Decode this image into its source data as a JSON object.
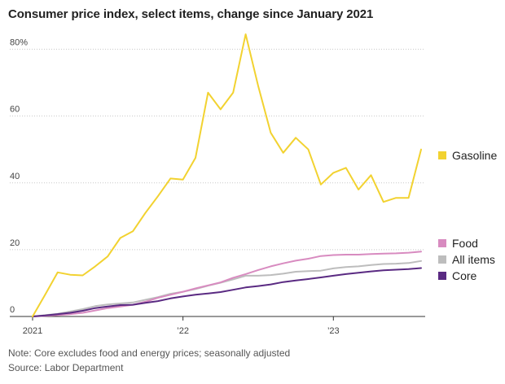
{
  "chart_data": {
    "type": "line",
    "title": "Consumer price index, select items, change since January 2021",
    "y_ticks": [
      "80%",
      "60",
      "40",
      "20",
      "0"
    ],
    "y_tick_values": [
      80,
      60,
      40,
      20,
      0
    ],
    "x_ticks": [
      "2021",
      "’22",
      "’23"
    ],
    "x_tick_values": [
      0,
      12,
      24
    ],
    "ylim": [
      0,
      85
    ],
    "xlim": [
      0,
      31
    ],
    "grid": true,
    "legend_placement": "right",
    "x": [
      0,
      1,
      2,
      3,
      4,
      5,
      6,
      7,
      8,
      9,
      10,
      11,
      12,
      13,
      14,
      15,
      16,
      17,
      18,
      19,
      20,
      21,
      22,
      23,
      24,
      25,
      26,
      27,
      28,
      29,
      30,
      31
    ],
    "series": [
      {
        "name": "Gasoline",
        "color": "#f2d230",
        "values": [
          0,
          6.5,
          13.2,
          12.5,
          12.3,
          15,
          18,
          23.5,
          25.5,
          31,
          36,
          41.3,
          41,
          47.5,
          67,
          62,
          67,
          84.5,
          69,
          55,
          49,
          53.5,
          50,
          39.5,
          43,
          44.5,
          38,
          42.3,
          34.3,
          35.5,
          35.5,
          50
        ]
      },
      {
        "name": "Food",
        "color": "#d88bc0",
        "values": [
          0,
          0.2,
          0.4,
          0.7,
          1.1,
          1.8,
          2.5,
          3,
          3.5,
          4.4,
          5.6,
          6.5,
          7.4,
          8.4,
          9.3,
          10.2,
          11.6,
          12.7,
          13.9,
          15,
          15.9,
          16.7,
          17.3,
          18.1,
          18.4,
          18.5,
          18.5,
          18.7,
          18.8,
          18.9,
          19.1,
          19.4
        ]
      },
      {
        "name": "All items",
        "color": "#bdbdbd",
        "values": [
          0,
          0.4,
          0.8,
          1.5,
          2.2,
          3.1,
          3.6,
          3.9,
          4.2,
          5,
          5.8,
          6.8,
          7.4,
          8.2,
          9.2,
          10.1,
          11.1,
          12.2,
          12.2,
          12.4,
          12.8,
          13.4,
          13.6,
          13.7,
          14.4,
          14.8,
          15,
          15.4,
          15.7,
          15.8,
          16,
          16.6
        ]
      },
      {
        "name": "Core",
        "color": "#5a2a82",
        "values": [
          0,
          0.3,
          0.7,
          1.1,
          1.7,
          2.5,
          3,
          3.4,
          3.5,
          4.1,
          4.6,
          5.4,
          6,
          6.5,
          6.9,
          7.3,
          8,
          8.7,
          9.1,
          9.6,
          10.3,
          10.8,
          11.2,
          11.7,
          12.2,
          12.7,
          13.1,
          13.5,
          13.8,
          14,
          14.2,
          14.5
        ]
      }
    ],
    "legend": [
      {
        "name": "Gasoline",
        "color": "#f2d230"
      },
      {
        "name": "Food",
        "color": "#d88bc0"
      },
      {
        "name": "All items",
        "color": "#bdbdbd"
      },
      {
        "name": "Core",
        "color": "#5a2a82"
      }
    ]
  },
  "footer": {
    "note": "Note: Core excludes food and energy prices; seasonally adjusted",
    "source": "Source: Labor Department"
  }
}
